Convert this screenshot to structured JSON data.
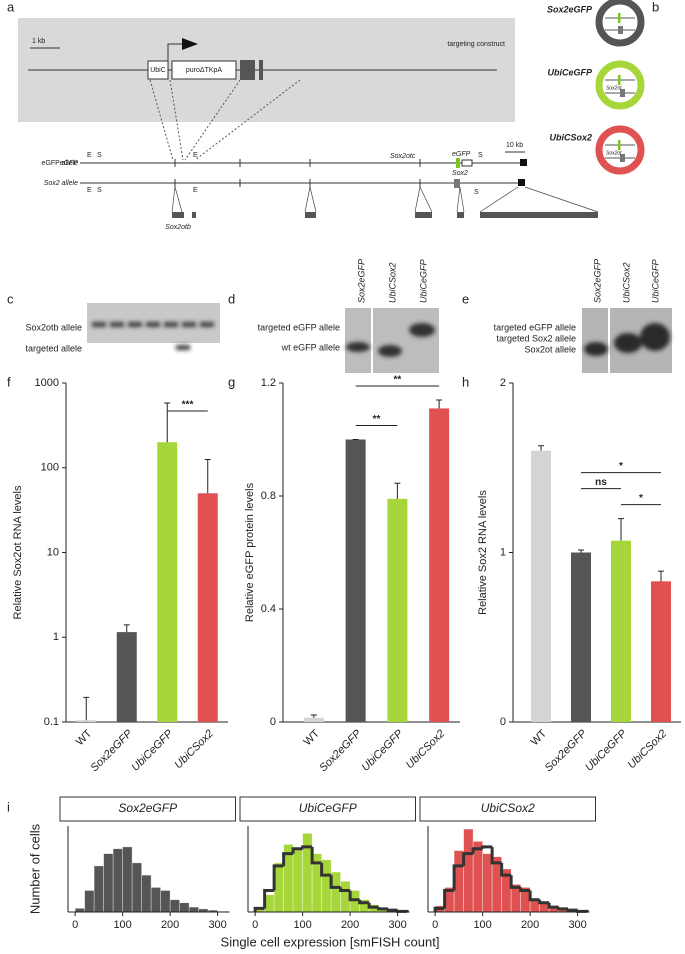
{
  "diagram": {
    "letters": [
      "a",
      "b",
      "c",
      "d",
      "e",
      "f",
      "g",
      "h",
      "i"
    ],
    "a": {
      "scale": "1 kb",
      "promoter": "UbiC",
      "cassette": "puroΔTKpA",
      "construct": "targeting construct",
      "egfp_allele": "eGFP allele",
      "sox2_allele": "Sox2 allele",
      "sites": [
        "E",
        "S",
        "E",
        "S",
        "E",
        "S",
        "E",
        "S"
      ],
      "sox2otc": "Sox2otc",
      "egfp": "eGFP",
      "sox2": "Sox2",
      "scale2": "10 kb",
      "sox2otb": "Sox2otb"
    },
    "b": {
      "lines": [
        "Sox2eGFP",
        "UbiCeGFP",
        "UbiCSox2"
      ],
      "gene": [
        "Sox2ot",
        "Sox2ot"
      ]
    },
    "c": {
      "bands": [
        "Sox2otb allele",
        "targeted allele"
      ]
    },
    "d": {
      "lanes": [
        "Sox2eGFP",
        "UbiCSox2",
        "UbiCeGFP"
      ],
      "bands": [
        "targeted eGFP allele",
        "wt  eGFP allele"
      ]
    },
    "e": {
      "lanes": [
        "Sox2eGFP",
        "UbiCSox2",
        "UbiCeGFP"
      ],
      "bands": [
        "targeted eGFP allele",
        "targeted Sox2 allele",
        "Sox2ot allele"
      ]
    }
  },
  "chart_data": [
    {
      "type": "bar",
      "ylabel": "Relative Sox2ot RNA levels",
      "log_scale": true,
      "categories": [
        "WT",
        "Sox2eGFP",
        "UbiCeGFP",
        "UbiCSox2"
      ],
      "values": [
        0.105,
        1.15,
        200,
        50
      ],
      "errors": [
        0.09,
        0.25,
        380,
        75
      ],
      "colors": [
        "#d4d4d4",
        "#555555",
        "#a6d63a",
        "#e05252"
      ],
      "ylim": [
        0.1,
        1000
      ],
      "yticks": [
        0.1,
        1,
        10,
        100,
        1000
      ],
      "annotations": [
        {
          "label": "***",
          "between": [
            "UbiCeGFP",
            "UbiCSox2"
          ]
        }
      ]
    },
    {
      "type": "bar",
      "ylabel": "Relative eGFP protein levels",
      "categories": [
        "WT",
        "Sox2eGFP",
        "UbiCeGFP",
        "UbiCSox2"
      ],
      "values": [
        0.015,
        1.0,
        0.79,
        1.11
      ],
      "errors": [
        0.01,
        0.0,
        0.055,
        0.03
      ],
      "colors": [
        "#d4d4d4",
        "#555555",
        "#a6d63a",
        "#e05252"
      ],
      "ylim": [
        0,
        1.2
      ],
      "yticks": [
        0,
        0.4,
        0.8,
        1.2
      ],
      "annotations": [
        {
          "label": "**",
          "between": [
            "Sox2eGFP",
            "UbiCeGFP"
          ]
        },
        {
          "label": "**",
          "between": [
            "Sox2eGFP",
            "UbiCSox2"
          ]
        }
      ]
    },
    {
      "type": "bar",
      "ylabel": "Relative Sox2 RNA levels",
      "categories": [
        "WT",
        "Sox2eGFP",
        "UbiCeGFP",
        "UbiCSox2"
      ],
      "values": [
        1.6,
        1.0,
        1.07,
        0.83
      ],
      "errors": [
        0.03,
        0.015,
        0.13,
        0.06
      ],
      "colors": [
        "#d4d4d4",
        "#555555",
        "#a6d63a",
        "#e05252"
      ],
      "ylim": [
        0,
        2
      ],
      "yticks": [
        0,
        1,
        2
      ],
      "annotations": [
        {
          "label": "*",
          "between": [
            "UbiCeGFP",
            "UbiCSox2"
          ]
        },
        {
          "label": "ns",
          "between": [
            "Sox2eGFP",
            "UbiCeGFP"
          ]
        },
        {
          "label": "*",
          "between": [
            "Sox2eGFP",
            "UbiCSox2"
          ]
        }
      ]
    },
    {
      "type": "histogram",
      "title": "Sox2eGFP",
      "ylabel": "Number of cells",
      "bins": [
        0,
        20,
        40,
        60,
        80,
        100,
        120,
        140,
        160,
        180,
        200,
        220,
        240,
        260,
        280,
        300,
        320
      ],
      "values": [
        6,
        35,
        75,
        95,
        103,
        106,
        80,
        60,
        40,
        35,
        20,
        15,
        8,
        5,
        3,
        1
      ],
      "color": "#555555",
      "xlim": [
        -15,
        325
      ],
      "xticks": [
        0,
        100,
        200,
        300
      ],
      "ylim": [
        0,
        140
      ]
    },
    {
      "type": "histogram",
      "title": "UbiCeGFP",
      "xlabel": "Single cell expression [smFISH count]",
      "bins": [
        0,
        20,
        40,
        60,
        80,
        100,
        120,
        140,
        160,
        180,
        200,
        220,
        240,
        260,
        280,
        300,
        320
      ],
      "values": [
        8,
        28,
        80,
        110,
        105,
        128,
        95,
        85,
        65,
        50,
        35,
        20,
        12,
        7,
        3,
        1
      ],
      "color": "#a6d63a",
      "outline": {
        "color": "#333333",
        "values": [
          6,
          35,
          75,
          95,
          103,
          106,
          80,
          60,
          40,
          35,
          20,
          15,
          8,
          5,
          3,
          1
        ]
      },
      "xlim": [
        -15,
        325
      ],
      "xticks": [
        0,
        100,
        200,
        300
      ],
      "ylim": [
        0,
        140
      ]
    },
    {
      "type": "histogram",
      "title": "UbiCSox2",
      "bins": [
        0,
        20,
        40,
        60,
        80,
        100,
        120,
        140,
        160,
        180,
        200,
        220,
        240,
        260,
        280,
        300,
        320
      ],
      "values": [
        10,
        40,
        100,
        135,
        115,
        95,
        90,
        70,
        45,
        40,
        20,
        15,
        10,
        5,
        3,
        1
      ],
      "color": "#e05252",
      "outline": {
        "color": "#333333",
        "values": [
          6,
          35,
          75,
          95,
          103,
          106,
          80,
          60,
          40,
          35,
          20,
          15,
          8,
          5,
          3,
          1
        ]
      },
      "xlim": [
        -15,
        325
      ],
      "xticks": [
        0,
        100,
        200,
        300
      ],
      "ylim": [
        0,
        140
      ]
    }
  ]
}
